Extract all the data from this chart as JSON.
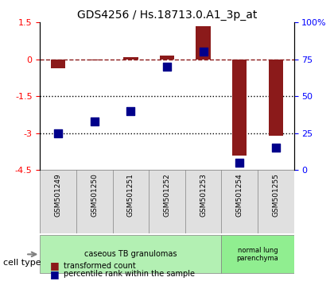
{
  "title": "GDS4256 / Hs.18713.0.A1_3p_at",
  "samples": [
    "GSM501249",
    "GSM501250",
    "GSM501251",
    "GSM501252",
    "GSM501253",
    "GSM501254",
    "GSM501255"
  ],
  "transformed_count": [
    -0.35,
    -0.05,
    0.1,
    0.15,
    1.35,
    -3.9,
    -3.1
  ],
  "percentile_rank": [
    25,
    33,
    40,
    70,
    80,
    5,
    15
  ],
  "ylim_left": [
    -4.5,
    1.5
  ],
  "yticks_left": [
    1.5,
    0,
    -1.5,
    -3,
    -4.5
  ],
  "yticks_right_vals": [
    100,
    75,
    50,
    25,
    0
  ],
  "yticks_right_labels": [
    "100%",
    "75",
    "50",
    "25",
    "0"
  ],
  "bar_color": "#8B1A1A",
  "dot_color": "#00008B",
  "dashed_line_color": "#8B1A1A",
  "dotted_line_color": "#000000",
  "group1_label": "caseous TB granulomas",
  "group2_label": "normal lung\nparenchyma",
  "group1_indices": [
    0,
    1,
    2,
    3,
    4
  ],
  "group2_indices": [
    5,
    6
  ],
  "cell_type_label": "cell type",
  "legend1": "transformed count",
  "legend2": "percentile rank within the sample",
  "bar_width": 0.4,
  "dot_size": 60
}
